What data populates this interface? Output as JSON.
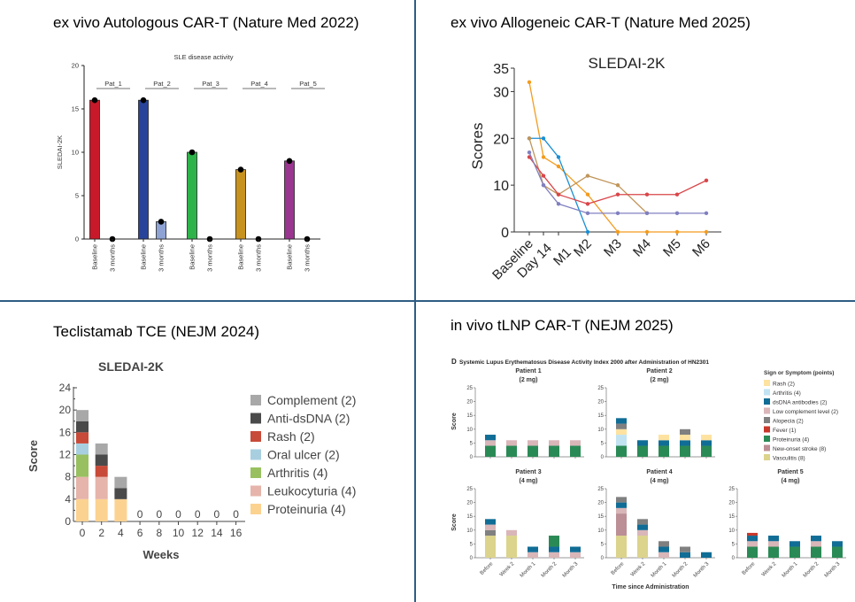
{
  "panels": {
    "top_left_title": "ex vivo Autologous CAR-T (Nature Med 2022)",
    "top_right_title": "ex vivo Allogeneic CAR-T (Nature Med 2025)",
    "bottom_left_title": "Teclistamab TCE (NEJM 2024)",
    "bottom_right_title": "in vivo tLNP CAR-T (NEJM 2025)",
    "divider_color": "#2f5c84"
  },
  "chart_data": [
    {
      "type": "bar",
      "title": "SLE disease activity",
      "ylabel": "SLEDAI-2K",
      "ylim": [
        0,
        20
      ],
      "yticks": [
        "0",
        "5",
        "10",
        "15",
        "20"
      ],
      "groups": [
        {
          "label": "Pat_1",
          "bars": [
            {
              "x": "Baseline",
              "value": 16,
              "color": "#c8192a"
            },
            {
              "x": "3 months",
              "value": 0,
              "color": "#c8192a"
            }
          ]
        },
        {
          "label": "Pat_2",
          "bars": [
            {
              "x": "Baseline",
              "value": 16,
              "color": "#28449a"
            },
            {
              "x": "3 months",
              "value": 2,
              "color": "#8ea2d4"
            }
          ]
        },
        {
          "label": "Pat_3",
          "bars": [
            {
              "x": "Baseline",
              "value": 10,
              "color": "#2db34a"
            },
            {
              "x": "3 months",
              "value": 0,
              "color": "#2db34a"
            }
          ]
        },
        {
          "label": "Pat_4",
          "bars": [
            {
              "x": "Baseline",
              "value": 8,
              "color": "#c8921e"
            },
            {
              "x": "3 months",
              "value": 0,
              "color": "#c8921e"
            }
          ]
        },
        {
          "label": "Pat_5",
          "bars": [
            {
              "x": "Baseline",
              "value": 9,
              "color": "#9a3590"
            },
            {
              "x": "3 months",
              "value": 0,
              "color": "#9a3590"
            }
          ]
        }
      ]
    },
    {
      "type": "line",
      "title": "SLEDAI-2K",
      "ylabel": "Scores",
      "ylim": [
        0,
        35
      ],
      "yticks": [
        "0",
        "10",
        "20",
        "30",
        "35"
      ],
      "categories": [
        "Baseline",
        "Day 14",
        "M1",
        "M2",
        "M3",
        "M4",
        "M5",
        "M6"
      ],
      "series": [
        {
          "color": "#f39c1f",
          "values": [
            32,
            16,
            14,
            8,
            0,
            0,
            0,
            0
          ]
        },
        {
          "color": "#1a8fd4",
          "values": [
            20,
            20,
            16,
            0,
            null,
            null,
            null,
            null
          ]
        },
        {
          "color": "#c0955a",
          "values": [
            20,
            10,
            8,
            12,
            10,
            4,
            null,
            null
          ]
        },
        {
          "color": "#d9464a",
          "values": [
            16,
            12,
            8,
            6,
            8,
            8,
            8,
            11
          ]
        },
        {
          "color": "#8080c0",
          "values": [
            17,
            10,
            6,
            4,
            4,
            4,
            4,
            4
          ]
        }
      ]
    },
    {
      "type": "bar",
      "stacked": true,
      "title": "SLEDAI-2K",
      "xlabel": "Weeks",
      "ylabel": "Score",
      "ylim": [
        0,
        24
      ],
      "yticks": [
        "0",
        "4",
        "8",
        "12",
        "16",
        "20",
        "24"
      ],
      "categories": [
        "0",
        "2",
        "4",
        "6",
        "8",
        "10",
        "12",
        "14",
        "16"
      ],
      "zero_label": "0",
      "legend_position": "right",
      "legend": [
        {
          "label": "Complement (2)",
          "color": "#a8a8a8"
        },
        {
          "label": "Anti-dsDNA (2)",
          "color": "#4a4a4a"
        },
        {
          "label": "Rash (2)",
          "color": "#c84a38"
        },
        {
          "label": "Oral ulcer (2)",
          "color": "#a8cfe0"
        },
        {
          "label": "Arthritis (4)",
          "color": "#98c060"
        },
        {
          "label": "Leukocyturia (4)",
          "color": "#e6b4aa"
        },
        {
          "label": "Proteinuria (4)",
          "color": "#fcd290"
        }
      ],
      "stacks": [
        [
          [
            "Proteinuria (4)",
            4
          ],
          [
            "Leukocyturia (4)",
            4
          ],
          [
            "Arthritis (4)",
            4
          ],
          [
            "Oral ulcer (2)",
            2
          ],
          [
            "Rash (2)",
            2
          ],
          [
            "Anti-dsDNA (2)",
            2
          ],
          [
            "Complement (2)",
            2
          ]
        ],
        [
          [
            "Proteinuria (4)",
            4
          ],
          [
            "Leukocyturia (4)",
            4
          ],
          [
            "Rash (2)",
            2
          ],
          [
            "Anti-dsDNA (2)",
            2
          ],
          [
            "Complement (2)",
            2
          ]
        ],
        [
          [
            "Proteinuria (4)",
            4
          ],
          [
            "Anti-dsDNA (2)",
            2
          ],
          [
            "Complement (2)",
            2
          ]
        ],
        [],
        [],
        [],
        [],
        [],
        []
      ]
    },
    {
      "type": "bar",
      "stacked": true,
      "title": "Systemic Lupus Erythematosus Disease Activity Index 2000 after Administration of HN2301",
      "panel_letter": "D",
      "xlabel": "Time since Administration",
      "ylabel": "Score",
      "ylim": [
        0,
        25
      ],
      "yticks": [
        "0",
        "5",
        "10",
        "15",
        "20",
        "25"
      ],
      "categories": [
        "Before",
        "Week 2",
        "Month 1",
        "Month 2",
        "Month 3"
      ],
      "legend_title": "Sign or Symptom (points)",
      "legend_position": "right",
      "legend": [
        {
          "label": "Rash (2)",
          "color": "#fde2a0"
        },
        {
          "label": "Arthritis (4)",
          "color": "#c2e3f2"
        },
        {
          "label": "dsDNA antibodies (2)",
          "color": "#106d96"
        },
        {
          "label": "Low complement level (2)",
          "color": "#d9b6b8"
        },
        {
          "label": "Alopecia (2)",
          "color": "#808080"
        },
        {
          "label": "Fever (1)",
          "color": "#c8382a"
        },
        {
          "label": "Proteinuria (4)",
          "color": "#2a8a55"
        },
        {
          "label": "New-onset stroke (8)",
          "color": "#bb8f95"
        },
        {
          "label": "Vasculitis (8)",
          "color": "#dcd38c"
        }
      ],
      "patients": [
        {
          "name": "Patient 1",
          "dose": "(2 mg)",
          "stacks": [
            [
              [
                "Proteinuria (4)",
                4
              ],
              [
                "Low complement level (2)",
                2
              ],
              [
                "dsDNA antibodies (2)",
                2
              ]
            ],
            [
              [
                "Proteinuria (4)",
                4
              ],
              [
                "Low complement level (2)",
                2
              ]
            ],
            [
              [
                "Proteinuria (4)",
                4
              ],
              [
                "Low complement level (2)",
                2
              ]
            ],
            [
              [
                "Proteinuria (4)",
                4
              ],
              [
                "Low complement level (2)",
                2
              ]
            ],
            [
              [
                "Proteinuria (4)",
                4
              ],
              [
                "Low complement level (2)",
                2
              ]
            ]
          ]
        },
        {
          "name": "Patient 2",
          "dose": "(2 mg)",
          "stacks": [
            [
              [
                "Proteinuria (4)",
                4
              ],
              [
                "Arthritis (4)",
                4
              ],
              [
                "Rash (2)",
                2
              ],
              [
                "Alopecia (2)",
                2
              ],
              [
                "dsDNA antibodies (2)",
                2
              ]
            ],
            [
              [
                "Proteinuria (4)",
                4
              ],
              [
                "dsDNA antibodies (2)",
                2
              ]
            ],
            [
              [
                "Proteinuria (4)",
                4
              ],
              [
                "dsDNA antibodies (2)",
                2
              ],
              [
                "Rash (2)",
                2
              ]
            ],
            [
              [
                "Proteinuria (4)",
                4
              ],
              [
                "dsDNA antibodies (2)",
                2
              ],
              [
                "Rash (2)",
                2
              ],
              [
                "Alopecia (2)",
                2
              ]
            ],
            [
              [
                "Proteinuria (4)",
                4
              ],
              [
                "dsDNA antibodies (2)",
                2
              ],
              [
                "Rash (2)",
                2
              ]
            ]
          ]
        },
        {
          "name": "Patient 3",
          "dose": "(4 mg)",
          "stacks": [
            [
              [
                "Vasculitis (8)",
                8
              ],
              [
                "Alopecia (2)",
                2
              ],
              [
                "Low complement level (2)",
                2
              ],
              [
                "dsDNA antibodies (2)",
                2
              ]
            ],
            [
              [
                "Vasculitis (8)",
                8
              ],
              [
                "Low complement level (2)",
                2
              ]
            ],
            [
              [
                "Low complement level (2)",
                2
              ],
              [
                "dsDNA antibodies (2)",
                2
              ]
            ],
            [
              [
                "Low complement level (2)",
                2
              ],
              [
                "dsDNA antibodies (2)",
                2
              ],
              [
                "Proteinuria (4)",
                4
              ]
            ],
            [
              [
                "Low complement level (2)",
                2
              ],
              [
                "dsDNA antibodies (2)",
                2
              ]
            ]
          ]
        },
        {
          "name": "Patient 4",
          "dose": "(4 mg)",
          "stacks": [
            [
              [
                "Vasculitis (8)",
                8
              ],
              [
                "New-onset stroke (8)",
                8
              ],
              [
                "Low complement level (2)",
                2
              ],
              [
                "dsDNA antibodies (2)",
                2
              ],
              [
                "Alopecia (2)",
                2
              ]
            ],
            [
              [
                "Vasculitis (8)",
                8
              ],
              [
                "Low complement level (2)",
                2
              ],
              [
                "dsDNA antibodies (2)",
                2
              ],
              [
                "Alopecia (2)",
                2
              ]
            ],
            [
              [
                "Low complement level (2)",
                2
              ],
              [
                "dsDNA antibodies (2)",
                2
              ],
              [
                "Alopecia (2)",
                2
              ]
            ],
            [
              [
                "dsDNA antibodies (2)",
                2
              ],
              [
                "Alopecia (2)",
                2
              ]
            ],
            [
              [
                "dsDNA antibodies (2)",
                2
              ]
            ]
          ]
        },
        {
          "name": "Patient 5",
          "dose": "(4 mg)",
          "stacks": [
            [
              [
                "Proteinuria (4)",
                4
              ],
              [
                "Low complement level (2)",
                2
              ],
              [
                "dsDNA antibodies (2)",
                2
              ],
              [
                "Fever (1)",
                1
              ]
            ],
            [
              [
                "Proteinuria (4)",
                4
              ],
              [
                "Low complement level (2)",
                2
              ],
              [
                "dsDNA antibodies (2)",
                2
              ]
            ],
            [
              [
                "Proteinuria (4)",
                4
              ],
              [
                "dsDNA antibodies (2)",
                2
              ]
            ],
            [
              [
                "Proteinuria (4)",
                4
              ],
              [
                "Low complement level (2)",
                2
              ],
              [
                "dsDNA antibodies (2)",
                2
              ]
            ],
            [
              [
                "Proteinuria (4)",
                4
              ],
              [
                "dsDNA antibodies (2)",
                2
              ]
            ]
          ]
        }
      ]
    }
  ]
}
